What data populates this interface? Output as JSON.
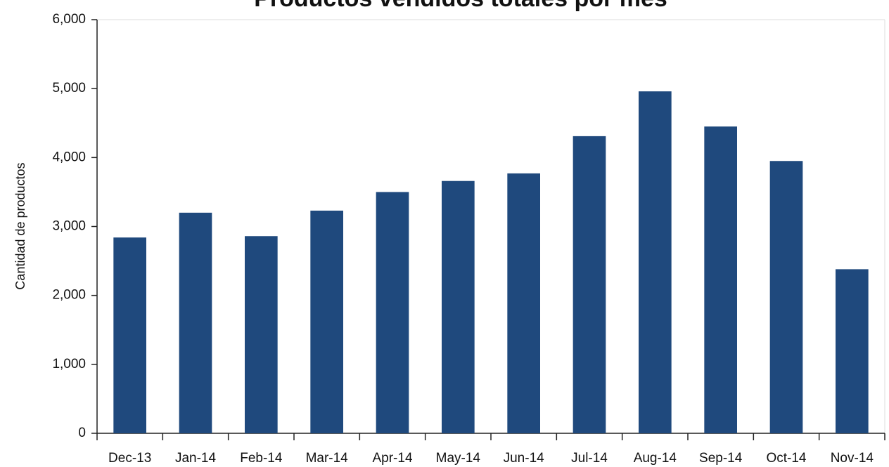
{
  "chart_data": {
    "type": "bar",
    "title": "Productos vendidos totales por mes",
    "y_label": "Cantidad de productos",
    "categories": [
      "Dec-13",
      "Jan-14",
      "Feb-14",
      "Mar-14",
      "Apr-14",
      "May-14",
      "Jun-14",
      "Jul-14",
      "Aug-14",
      "Sep-14",
      "Oct-14",
      "Nov-14"
    ],
    "values": [
      2840,
      3200,
      2860,
      3230,
      3500,
      3660,
      3770,
      4310,
      4960,
      4450,
      3950,
      2380
    ],
    "color": "#1f497d",
    "ylim": [
      0,
      6000
    ],
    "yticks": [
      0,
      {
        "value": 1000,
        "label": "1,000"
      },
      {
        "value": 2000,
        "label": "2,000"
      },
      {
        "value": 3000,
        "label": "3,000"
      },
      {
        "value": 4000,
        "label": "4,000"
      },
      {
        "value": 5000,
        "label": "5,000"
      },
      {
        "value": 6000,
        "label": "6,000"
      }
    ],
    "grid": false
  }
}
